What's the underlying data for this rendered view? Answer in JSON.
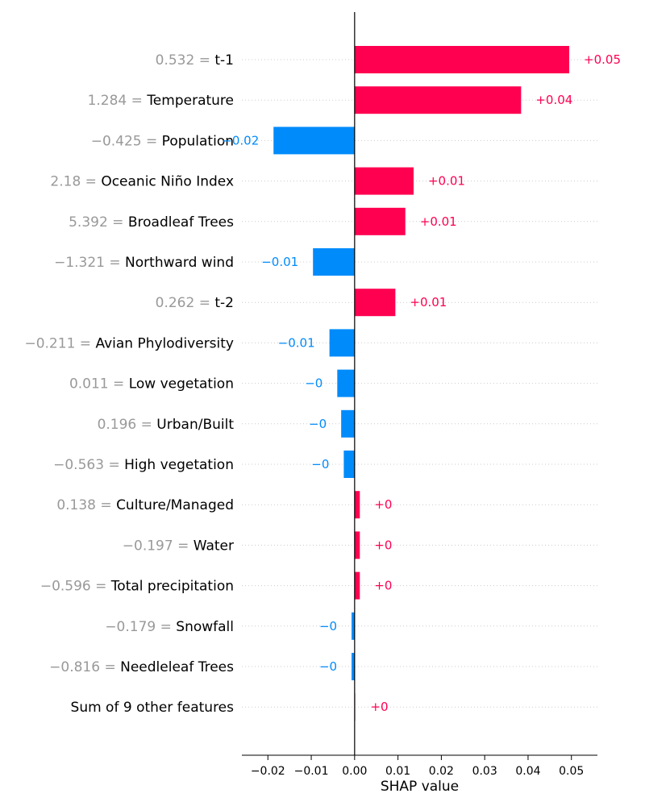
{
  "chart_data": {
    "type": "bar",
    "orientation": "horizontal",
    "xlabel": "SHAP value",
    "xlim": [
      -0.026,
      0.056
    ],
    "xticks": [
      {
        "value": -0.02,
        "label": "−0.02"
      },
      {
        "value": -0.01,
        "label": "−0.01"
      },
      {
        "value": 0.0,
        "label": "0.00"
      },
      {
        "value": 0.01,
        "label": "0.01"
      },
      {
        "value": 0.02,
        "label": "0.02"
      },
      {
        "value": 0.03,
        "label": "0.03"
      },
      {
        "value": 0.04,
        "label": "0.04"
      },
      {
        "value": 0.05,
        "label": "0.05"
      }
    ],
    "grid": "horizontal dotted",
    "colors": {
      "positive": "#ff0051",
      "negative": "#008bfb",
      "sum_bar": "#f5d0da"
    },
    "features": [
      {
        "value_text": "0.532 =",
        "name": "t-1",
        "shap": 0.0495,
        "label": "+0.05"
      },
      {
        "value_text": "1.284 =",
        "name": "Temperature",
        "shap": 0.0384,
        "label": "+0.04"
      },
      {
        "value_text": "−0.425 =",
        "name": "Population",
        "shap": -0.0187,
        "label": "−0.02"
      },
      {
        "value_text": "2.18 =",
        "name": "Oceanic Niño Index",
        "shap": 0.0136,
        "label": "+0.01"
      },
      {
        "value_text": "5.392 =",
        "name": "Broadleaf Trees",
        "shap": 0.0117,
        "label": "+0.01"
      },
      {
        "value_text": "−1.321 =",
        "name": "Northward wind",
        "shap": -0.0096,
        "label": "−0.01"
      },
      {
        "value_text": "0.262 =",
        "name": "t-2",
        "shap": 0.0094,
        "label": "+0.01"
      },
      {
        "value_text": "−0.211 =",
        "name": "Avian Phylodiversity",
        "shap": -0.0058,
        "label": "−0.01"
      },
      {
        "value_text": "0.011 =",
        "name": "Low vegetation",
        "shap": -0.004,
        "label": "−0"
      },
      {
        "value_text": "0.196 =",
        "name": "Urban/Built",
        "shap": -0.0031,
        "label": "−0"
      },
      {
        "value_text": "−0.563 =",
        "name": "High vegetation",
        "shap": -0.0025,
        "label": "−0"
      },
      {
        "value_text": "0.138 =",
        "name": "Culture/Managed",
        "shap": 0.0012,
        "label": "+0"
      },
      {
        "value_text": "−0.197 =",
        "name": "Water",
        "shap": 0.0012,
        "label": "+0"
      },
      {
        "value_text": "−0.596 =",
        "name": "Total precipitation",
        "shap": 0.0012,
        "label": "+0"
      },
      {
        "value_text": "−0.179 =",
        "name": "Snowfall",
        "shap": -0.0007,
        "label": "−0"
      },
      {
        "value_text": "−0.816 =",
        "name": "Needleleaf Trees",
        "shap": -0.0007,
        "label": "−0"
      },
      {
        "value_text": "",
        "name": "Sum of 9 other features",
        "shap": 0.0003,
        "label": "+0",
        "is_sum": true
      }
    ]
  }
}
